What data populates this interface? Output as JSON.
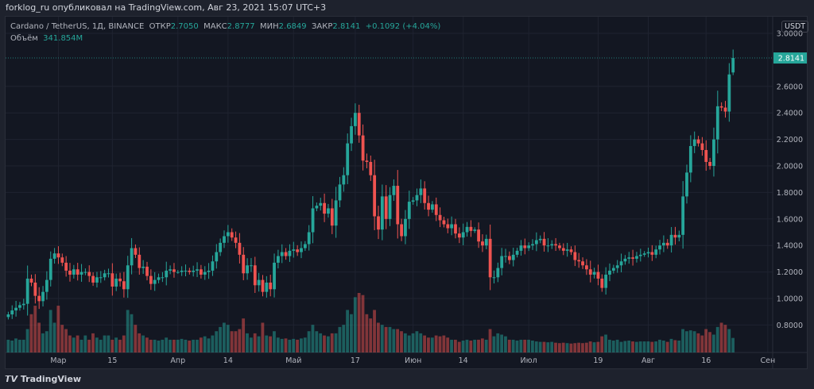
{
  "header": {
    "published": "forklog_ru опубликовал на TradingView.com, Авг 23, 2021 15:07 UTC+3"
  },
  "legend": {
    "symbol": "Cardano / TetherUS, 1Д, BINANCE",
    "open_label": "ОТКР",
    "open": "2.7050",
    "high_label": "МАКС",
    "high": "2.8777",
    "low_label": "МИН",
    "low": "2.6849",
    "close_label": "ЗАКР",
    "close": "2.8141",
    "change": "+0.1092 (+4.04%)",
    "volume_label": "Объём",
    "volume": "341.854M"
  },
  "currency": "USDT",
  "footer": {
    "brand": "TradingView"
  },
  "colors": {
    "up": "#26a69a",
    "down": "#ef5350",
    "background": "#131722"
  },
  "chart_data": {
    "type": "candlestick",
    "start_date": "2021-02-16",
    "interval": "1D",
    "last_candle": {
      "open": 2.705,
      "high": 2.8777,
      "low": 2.6849,
      "close": 2.8141
    },
    "ylim": [
      0.66,
      3.1
    ],
    "y_ticks": [
      "3.0000",
      "2.6000",
      "2.4000",
      "2.2000",
      "2.0000",
      "1.8000",
      "1.6000",
      "1.4000",
      "1.2000",
      "1.0000",
      "0.8000"
    ],
    "y_tick_values": [
      3.0,
      2.6,
      2.4,
      2.2,
      2.0,
      1.8,
      1.6,
      1.4,
      1.2,
      1.0,
      0.8
    ],
    "current_price_label": "2.8141",
    "x_ticks": [
      {
        "label": "Мар",
        "date": "2021-03-01"
      },
      {
        "label": "15",
        "date": "2021-03-15"
      },
      {
        "label": "Апр",
        "date": "2021-04-01"
      },
      {
        "label": "14",
        "date": "2021-04-14"
      },
      {
        "label": "Май",
        "date": "2021-05-01"
      },
      {
        "label": "17",
        "date": "2021-05-17"
      },
      {
        "label": "Июн",
        "date": "2021-06-01"
      },
      {
        "label": "14",
        "date": "2021-06-14"
      },
      {
        "label": "Июл",
        "date": "2021-07-01"
      },
      {
        "label": "19",
        "date": "2021-07-19"
      },
      {
        "label": "Авг",
        "date": "2021-08-01"
      },
      {
        "label": "16",
        "date": "2021-08-16"
      },
      {
        "label": "Сен",
        "date": "2021-09-01"
      }
    ],
    "first_open": 0.86,
    "closes": [
      0.88,
      0.91,
      0.93,
      0.95,
      0.96,
      1.15,
      1.12,
      1.02,
      0.98,
      1.05,
      1.14,
      1.3,
      1.34,
      1.31,
      1.27,
      1.21,
      1.18,
      1.22,
      1.18,
      1.2,
      1.2,
      1.17,
      1.12,
      1.16,
      1.16,
      1.19,
      1.19,
      1.09,
      1.15,
      1.13,
      1.07,
      1.25,
      1.38,
      1.33,
      1.23,
      1.24,
      1.17,
      1.11,
      1.14,
      1.16,
      1.16,
      1.21,
      1.22,
      1.2,
      1.2,
      1.21,
      1.21,
      1.2,
      1.21,
      1.22,
      1.18,
      1.2,
      1.21,
      1.28,
      1.35,
      1.42,
      1.47,
      1.5,
      1.46,
      1.42,
      1.33,
      1.19,
      1.25,
      1.25,
      1.1,
      1.14,
      1.05,
      1.12,
      1.07,
      1.27,
      1.32,
      1.35,
      1.32,
      1.36,
      1.37,
      1.35,
      1.38,
      1.41,
      1.5,
      1.68,
      1.7,
      1.72,
      1.64,
      1.68,
      1.55,
      1.74,
      1.86,
      1.93,
      2.17,
      2.3,
      2.4,
      2.23,
      2.04,
      2.03,
      1.93,
      1.62,
      1.52,
      1.77,
      1.6,
      1.78,
      1.85,
      1.56,
      1.47,
      1.6,
      1.73,
      1.74,
      1.78,
      1.83,
      1.72,
      1.67,
      1.71,
      1.63,
      1.59,
      1.56,
      1.53,
      1.56,
      1.49,
      1.46,
      1.5,
      1.54,
      1.51,
      1.52,
      1.43,
      1.4,
      1.45,
      1.16,
      1.16,
      1.23,
      1.32,
      1.32,
      1.29,
      1.33,
      1.36,
      1.4,
      1.38,
      1.4,
      1.41,
      1.44,
      1.45,
      1.4,
      1.4,
      1.41,
      1.4,
      1.38,
      1.36,
      1.37,
      1.35,
      1.29,
      1.28,
      1.25,
      1.22,
      1.18,
      1.2,
      1.15,
      1.08,
      1.18,
      1.21,
      1.23,
      1.25,
      1.28,
      1.3,
      1.31,
      1.3,
      1.32,
      1.33,
      1.34,
      1.35,
      1.33,
      1.37,
      1.4,
      1.42,
      1.4,
      1.48,
      1.46,
      1.48,
      1.77,
      1.95,
      2.15,
      2.2,
      2.17,
      2.12,
      2.03,
      2.0,
      2.2,
      2.45,
      2.44,
      2.41,
      2.69,
      2.8141
    ],
    "volume_millions": [
      300,
      280,
      330,
      300,
      300,
      550,
      900,
      1100,
      700,
      450,
      500,
      1000,
      700,
      1100,
      650,
      550,
      400,
      350,
      400,
      300,
      400,
      300,
      450,
      350,
      300,
      400,
      400,
      300,
      350,
      300,
      400,
      1000,
      900,
      650,
      450,
      400,
      350,
      300,
      300,
      280,
      300,
      350,
      300,
      300,
      300,
      320,
      300,
      280,
      300,
      300,
      350,
      380,
      330,
      400,
      500,
      600,
      700,
      650,
      500,
      500,
      550,
      800,
      450,
      350,
      450,
      380,
      700,
      400,
      380,
      500,
      350,
      320,
      330,
      300,
      320,
      300,
      330,
      350,
      500,
      650,
      500,
      450,
      400,
      380,
      450,
      450,
      600,
      650,
      1000,
      900,
      1300,
      1400,
      1350,
      900,
      800,
      1000,
      700,
      650,
      600,
      600,
      550,
      550,
      500,
      450,
      400,
      450,
      500,
      450,
      400,
      350,
      350,
      400,
      380,
      400,
      350,
      300,
      300,
      250,
      280,
      300,
      280,
      300,
      300,
      330,
      300,
      550,
      380,
      450,
      420,
      380,
      300,
      300,
      280,
      300,
      300,
      300,
      280,
      260,
      250,
      250,
      240,
      250,
      230,
      220,
      230,
      220,
      210,
      220,
      230,
      220,
      230,
      260,
      240,
      250,
      380,
      420,
      300,
      280,
      300,
      250,
      270,
      280,
      260,
      250,
      260,
      260,
      260,
      250,
      260,
      300,
      280,
      250,
      320,
      290,
      280,
      550,
      500,
      520,
      500,
      450,
      400,
      550,
      480,
      420,
      600,
      700,
      650,
      550,
      341.854
    ]
  }
}
